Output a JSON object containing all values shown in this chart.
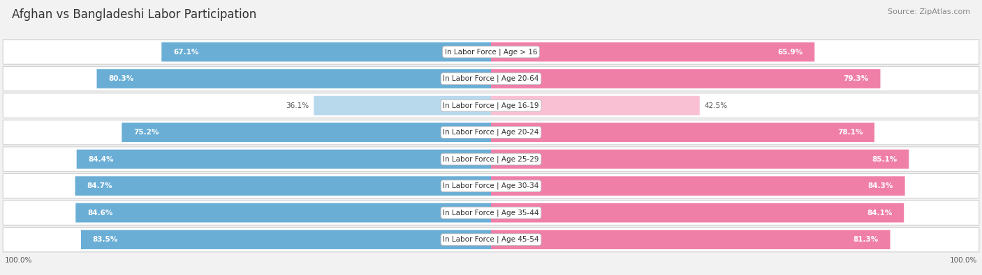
{
  "title": "Afghan vs Bangladeshi Labor Participation",
  "source": "Source: ZipAtlas.com",
  "categories": [
    "In Labor Force | Age > 16",
    "In Labor Force | Age 20-64",
    "In Labor Force | Age 16-19",
    "In Labor Force | Age 20-24",
    "In Labor Force | Age 25-29",
    "In Labor Force | Age 30-34",
    "In Labor Force | Age 35-44",
    "In Labor Force | Age 45-54"
  ],
  "afghan_values": [
    67.1,
    80.3,
    36.1,
    75.2,
    84.4,
    84.7,
    84.6,
    83.5
  ],
  "bangladeshi_values": [
    65.9,
    79.3,
    42.5,
    78.1,
    85.1,
    84.3,
    84.1,
    81.3
  ],
  "afghan_color": "#6aaed6",
  "afghan_color_light": "#b8d8ec",
  "bangladeshi_color": "#f07fa8",
  "bangladeshi_color_light": "#f9c0d4",
  "bg_color": "#f2f2f2",
  "row_bg_color": "#e8e8e8",
  "max_val": 100.0,
  "title_fontsize": 12,
  "label_fontsize": 7.5,
  "value_fontsize": 7.5,
  "legend_fontsize": 8.5,
  "source_fontsize": 8
}
